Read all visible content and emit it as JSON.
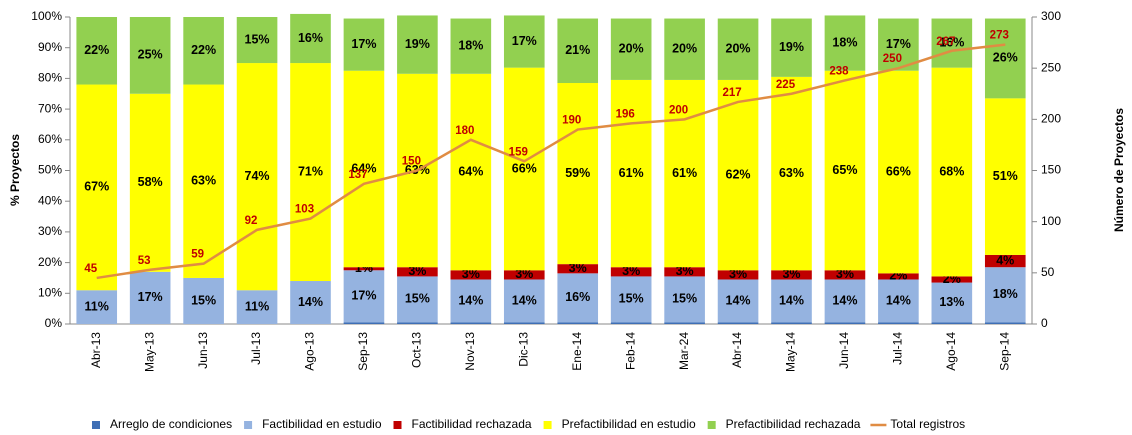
{
  "chart_data": {
    "type": "bar",
    "categories": [
      "Abr-13",
      "May-13",
      "Jun-13",
      "Jul-13",
      "Ago-13",
      "Sep-13",
      "Oct-13",
      "Nov-13",
      "Dic-13",
      "Ene-14",
      "Feb-14",
      "Mar-24",
      "Abr-14",
      "May-14",
      "Jun-14",
      "Jul-14",
      "Ago-14",
      "Sep-14"
    ],
    "ylabel": "% Proyectos",
    "y2label": "Número de Proyectos",
    "ylim": [
      0,
      100
    ],
    "yticks": [
      {
        "value": 0,
        "label": "0%"
      },
      {
        "value": 10,
        "label": "10%"
      },
      {
        "value": 20,
        "label": "20%"
      },
      {
        "value": 30,
        "label": "30%"
      },
      {
        "value": 40,
        "label": "40%"
      },
      {
        "value": 50,
        "label": "50%"
      },
      {
        "value": 60,
        "label": "60%"
      },
      {
        "value": 70,
        "label": "70%"
      },
      {
        "value": 80,
        "label": "80%"
      },
      {
        "value": 90,
        "label": "90%"
      },
      {
        "value": 100,
        "label": "100%"
      }
    ],
    "y2lim": [
      0,
      300
    ],
    "y2ticks": [
      0,
      50,
      100,
      150,
      200,
      250,
      300
    ],
    "legend": "bottom",
    "series": [
      {
        "name": "Arreglo de condiciones",
        "color": "#3f6fb5",
        "values": [
          null,
          null,
          null,
          null,
          null,
          0.5,
          0.5,
          0.5,
          0.5,
          0.5,
          0.5,
          0.5,
          0.5,
          0.5,
          0.5,
          0.5,
          0.5,
          0.5
        ]
      },
      {
        "name": "Factibilidad en estudio",
        "color": "#95b3e0",
        "values": [
          11,
          17,
          15,
          11,
          14,
          17,
          15,
          14,
          14,
          16,
          15,
          15,
          14,
          14,
          14,
          14,
          13,
          18
        ],
        "value_labels": [
          "11%",
          "17%",
          "15%",
          "11%",
          "14%",
          "17%",
          "15%",
          "14%",
          "14%",
          "16%",
          "15%",
          "15%",
          "14%",
          "14%",
          "14%",
          "14%",
          "13%",
          "18%"
        ]
      },
      {
        "name": "Factibilidad rechazada",
        "color": "#c00000",
        "values": [
          null,
          null,
          null,
          null,
          null,
          1,
          3,
          3,
          3,
          3,
          3,
          3,
          3,
          3,
          3,
          2,
          2,
          4
        ],
        "value_labels": [
          null,
          null,
          null,
          null,
          null,
          "1%",
          "3%",
          "3%",
          "3%",
          "3%",
          "3%",
          "3%",
          "3%",
          "3%",
          "3%",
          "2%",
          "2%",
          "4%"
        ]
      },
      {
        "name": "Prefactibilidad en estudio",
        "color": "#ffff00",
        "values": [
          67,
          58,
          63,
          74,
          71,
          64,
          63,
          64,
          66,
          59,
          61,
          61,
          62,
          63,
          65,
          66,
          68,
          51
        ],
        "value_labels": [
          "67%",
          "58%",
          "63%",
          "74%",
          "71%",
          "64%",
          "63%",
          "64%",
          "66%",
          "59%",
          "61%",
          "61%",
          "62%",
          "63%",
          "65%",
          "66%",
          "68%",
          "51%"
        ]
      },
      {
        "name": "Prefactibilidad rechazada",
        "color": "#92d050",
        "values": [
          22,
          25,
          22,
          15,
          16,
          17,
          19,
          18,
          17,
          21,
          20,
          20,
          20,
          19,
          18,
          17,
          16,
          26
        ],
        "value_labels": [
          "22%",
          "25%",
          "22%",
          "15%",
          "16%",
          "17%",
          "19%",
          "18%",
          "17%",
          "21%",
          "20%",
          "20%",
          "20%",
          "19%",
          "18%",
          "17%",
          "16%",
          "26%"
        ]
      },
      {
        "name": "Total registros",
        "color": "#e08c43",
        "axis": "y2",
        "values": [
          45,
          53,
          59,
          92,
          103,
          137,
          150,
          180,
          159,
          190,
          196,
          200,
          217,
          225,
          238,
          250,
          267,
          273
        ]
      }
    ]
  }
}
